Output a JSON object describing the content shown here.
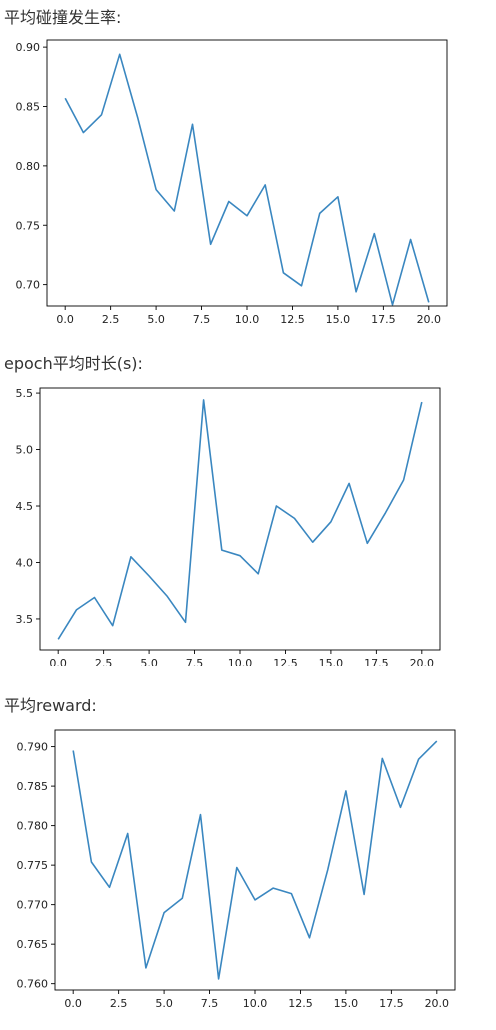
{
  "captions": [
    "平均碰撞发生率:",
    "epoch平均时长(s):",
    "平均reward:"
  ],
  "colors": {
    "line": "#3a87c0",
    "axis": "#000000"
  },
  "chart_data": [
    {
      "type": "line",
      "x": [
        0,
        1,
        2,
        3,
        4,
        5,
        6,
        7,
        8,
        9,
        10,
        11,
        12,
        13,
        14,
        15,
        16,
        17,
        18,
        19,
        20
      ],
      "values": [
        0.857,
        0.828,
        0.843,
        0.894,
        0.84,
        0.78,
        0.762,
        0.835,
        0.734,
        0.77,
        0.758,
        0.784,
        0.71,
        0.699,
        0.76,
        0.774,
        0.694,
        0.743,
        0.683,
        0.738,
        0.685
      ],
      "xlim": [
        -1,
        21
      ],
      "ylim": [
        0.682,
        0.906
      ],
      "xticks": [
        0.0,
        2.5,
        5.0,
        7.5,
        10.0,
        12.5,
        15.0,
        17.5,
        20.0
      ],
      "xtick_labels": [
        "0.0",
        "2.5",
        "5.0",
        "7.5",
        "10.0",
        "12.5",
        "15.0",
        "17.5",
        "20.0"
      ],
      "yticks": [
        0.7,
        0.75,
        0.8,
        0.85,
        0.9
      ],
      "ytick_labels": [
        "0.70",
        "0.75",
        "0.80",
        "0.85",
        "0.90"
      ],
      "grid": false
    },
    {
      "type": "line",
      "x": [
        0,
        1,
        2,
        3,
        4,
        5,
        6,
        7,
        8,
        9,
        10,
        11,
        12,
        13,
        14,
        15,
        16,
        17,
        18,
        19,
        20
      ],
      "values": [
        3.32,
        3.58,
        3.69,
        3.44,
        4.05,
        3.88,
        3.7,
        3.47,
        5.44,
        4.11,
        4.06,
        3.9,
        4.5,
        4.39,
        4.18,
        4.36,
        4.7,
        4.17,
        4.44,
        4.73,
        5.42
      ],
      "xlim": [
        -1,
        21
      ],
      "ylim": [
        3.225,
        5.545
      ],
      "xticks": [
        0.0,
        2.5,
        5.0,
        7.5,
        10.0,
        12.5,
        15.0,
        17.5,
        20.0
      ],
      "xtick_labels": [
        "0.0",
        "2.5",
        "5.0",
        "7.5",
        "10.0",
        "12.5",
        "15.0",
        "17.5",
        "20.0"
      ],
      "yticks": [
        3.5,
        4.0,
        4.5,
        5.0,
        5.5
      ],
      "ytick_labels": [
        "3.5",
        "4.0",
        "4.5",
        "5.0",
        "5.5"
      ],
      "grid": false
    },
    {
      "type": "line",
      "x": [
        0,
        1,
        2,
        3,
        4,
        5,
        6,
        7,
        8,
        9,
        10,
        11,
        12,
        13,
        14,
        15,
        16,
        17,
        18,
        19,
        20
      ],
      "values": [
        0.7895,
        0.7754,
        0.7722,
        0.779,
        0.762,
        0.769,
        0.7708,
        0.7814,
        0.7606,
        0.7747,
        0.7706,
        0.7721,
        0.7714,
        0.7658,
        0.7744,
        0.7844,
        0.7713,
        0.7885,
        0.7823,
        0.7884,
        0.7907
      ],
      "xlim": [
        -1,
        21
      ],
      "ylim": [
        0.7592,
        0.7921
      ],
      "xticks": [
        0.0,
        2.5,
        5.0,
        7.5,
        10.0,
        12.5,
        15.0,
        17.5,
        20.0
      ],
      "xtick_labels": [
        "0.0",
        "2.5",
        "5.0",
        "7.5",
        "10.0",
        "12.5",
        "15.0",
        "17.5",
        "20.0"
      ],
      "yticks": [
        0.76,
        0.765,
        0.77,
        0.775,
        0.78,
        0.785,
        0.79
      ],
      "ytick_labels": [
        "0.760",
        "0.765",
        "0.770",
        "0.775",
        "0.780",
        "0.785",
        "0.790"
      ],
      "grid": false
    }
  ]
}
